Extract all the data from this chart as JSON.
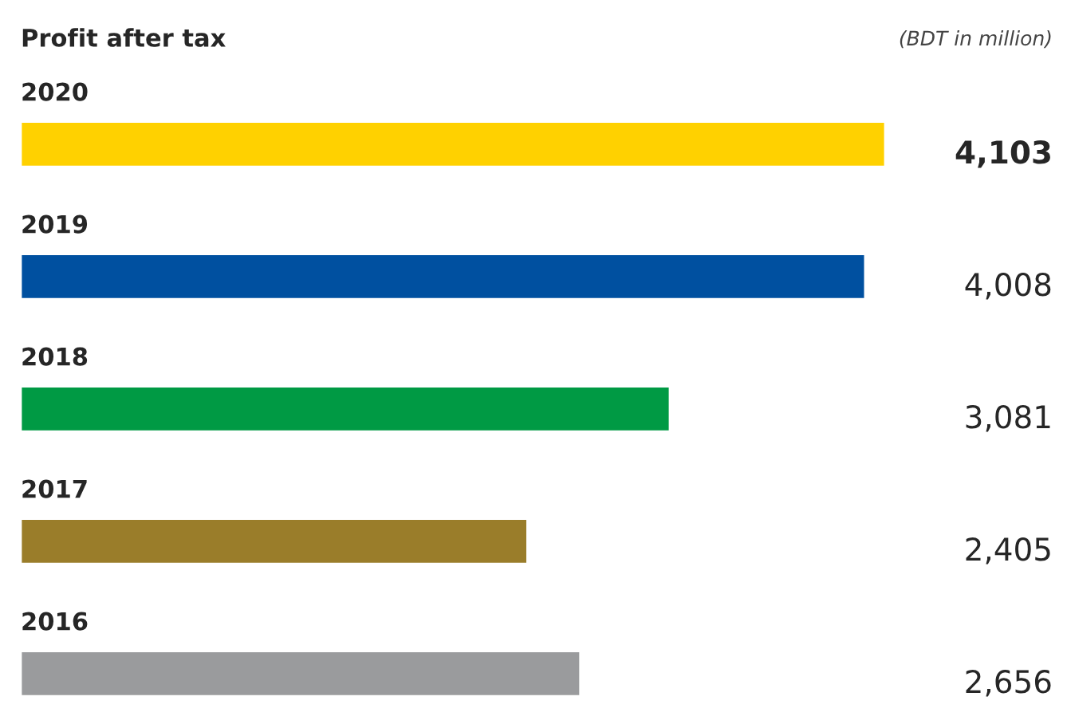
{
  "chart_data": {
    "type": "bar",
    "orientation": "horizontal",
    "title": "Profit after tax",
    "annotations": [
      "(BDT in million)"
    ],
    "categories": [
      "2020",
      "2019",
      "2018",
      "2017",
      "2016"
    ],
    "values": [
      4103,
      4008,
      3081,
      2405,
      2656
    ],
    "value_labels": [
      "4,103",
      "4,008",
      "3,081",
      "2,405",
      "2,656"
    ],
    "colors": [
      "#ffd100",
      "#0050a0",
      "#009a44",
      "#9a7d2a",
      "#9a9b9d"
    ]
  }
}
